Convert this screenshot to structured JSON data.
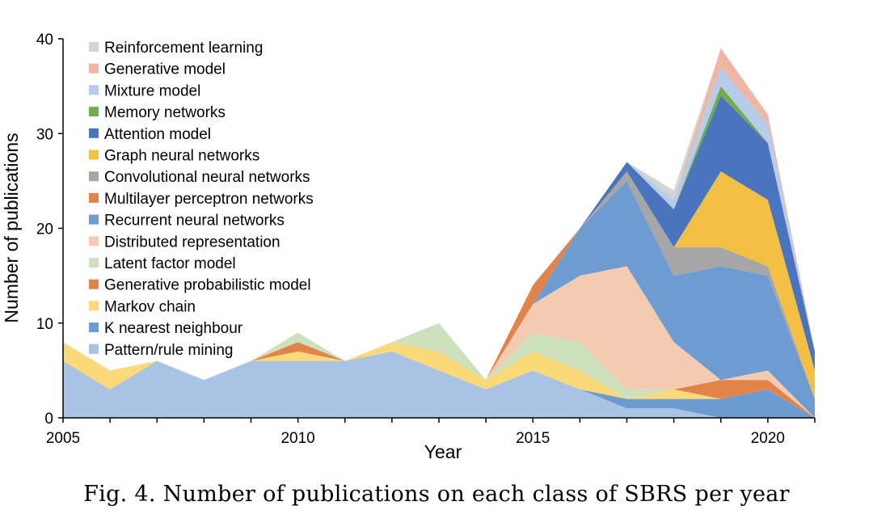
{
  "chart_data": {
    "type": "area",
    "stacked": true,
    "xlabel": "Year",
    "ylabel": "Number of publications",
    "xlim": [
      2005,
      2021
    ],
    "ylim": [
      0,
      40
    ],
    "x_ticks": [
      2005,
      2010,
      2015,
      2020
    ],
    "y_ticks": [
      0,
      10,
      20,
      30,
      40
    ],
    "legend_position": "top-left",
    "x": [
      2005,
      2006,
      2007,
      2008,
      2009,
      2010,
      2011,
      2012,
      2013,
      2014,
      2015,
      2016,
      2017,
      2018,
      2019,
      2020,
      2021
    ],
    "series": [
      {
        "name": "Pattern/rule mining",
        "color": "#a9c3e4",
        "values": [
          6,
          3,
          6,
          4,
          6,
          6,
          6,
          7,
          5,
          3,
          5,
          3,
          1,
          1,
          0,
          0,
          0
        ]
      },
      {
        "name": "K nearest neighbour",
        "color": "#6b9bd1",
        "values": [
          0,
          0,
          0,
          0,
          0,
          0,
          0,
          0,
          0,
          0,
          0,
          0,
          1,
          1,
          2,
          3,
          0
        ]
      },
      {
        "name": "Markov chain",
        "color": "#f9d978",
        "values": [
          2,
          2,
          0,
          0,
          0,
          1,
          0,
          1,
          2,
          1,
          2,
          2,
          0,
          1,
          0,
          0,
          0
        ]
      },
      {
        "name": "Generative probabilistic model",
        "color": "#e2844a",
        "values": [
          0,
          0,
          0,
          0,
          0,
          1,
          0,
          0,
          0,
          0,
          0,
          0,
          0,
          0,
          2,
          1,
          0
        ]
      },
      {
        "name": "Latent factor model",
        "color": "#cce1bc",
        "values": [
          0,
          0,
          0,
          0,
          0,
          1,
          0,
          0,
          3,
          0,
          2,
          3,
          1,
          0,
          0,
          0,
          0
        ]
      },
      {
        "name": "Distributed representation",
        "color": "#f3cbb0",
        "values": [
          0,
          0,
          0,
          0,
          0,
          0,
          0,
          0,
          0,
          0,
          3,
          7,
          13,
          5,
          0,
          1,
          0
        ]
      },
      {
        "name": "Recurrent neural networks",
        "color": "#6e9bd0",
        "values": [
          0,
          0,
          0,
          0,
          0,
          0,
          0,
          0,
          0,
          0,
          0,
          5,
          9,
          7,
          12,
          10,
          2
        ]
      },
      {
        "name": "Multilayer perceptron networks",
        "color": "#e2844a",
        "values": [
          0,
          0,
          0,
          0,
          0,
          0,
          0,
          0,
          0,
          0,
          2,
          0,
          0,
          0,
          0,
          0,
          0
        ]
      },
      {
        "name": "Convolutional neural networks",
        "color": "#a6a6a6",
        "values": [
          0,
          0,
          0,
          0,
          0,
          0,
          0,
          0,
          0,
          0,
          0,
          0,
          1,
          3,
          2,
          1,
          0
        ]
      },
      {
        "name": "Graph neural networks",
        "color": "#f4c043",
        "values": [
          0,
          0,
          0,
          0,
          0,
          0,
          0,
          0,
          0,
          0,
          0,
          0,
          0,
          0,
          8,
          7,
          3
        ]
      },
      {
        "name": "Attention model",
        "color": "#4b74bf",
        "values": [
          0,
          0,
          0,
          0,
          0,
          0,
          0,
          0,
          0,
          0,
          0,
          0,
          1,
          4,
          8,
          6,
          2
        ]
      },
      {
        "name": "Memory networks",
        "color": "#72ad4c",
        "values": [
          0,
          0,
          0,
          0,
          0,
          0,
          0,
          0,
          0,
          0,
          0,
          0,
          0,
          0,
          1,
          0,
          0
        ]
      },
      {
        "name": "Mixture model",
        "color": "#b7cbea",
        "values": [
          0,
          0,
          0,
          0,
          0,
          0,
          0,
          0,
          0,
          0,
          0,
          0,
          0,
          1,
          2,
          2,
          0
        ]
      },
      {
        "name": "Generative model",
        "color": "#efb7a3",
        "values": [
          0,
          0,
          0,
          0,
          0,
          0,
          0,
          0,
          0,
          0,
          0,
          0,
          0,
          0,
          2,
          1,
          0
        ]
      },
      {
        "name": "Reinforcement learning",
        "color": "#d4d4d4",
        "values": [
          0,
          0,
          0,
          0,
          0,
          0,
          0,
          0,
          0,
          0,
          0,
          0,
          0,
          1,
          0,
          0,
          0
        ]
      }
    ]
  },
  "caption": "Fig. 4.  Number of publications on each class of SBRS per year"
}
